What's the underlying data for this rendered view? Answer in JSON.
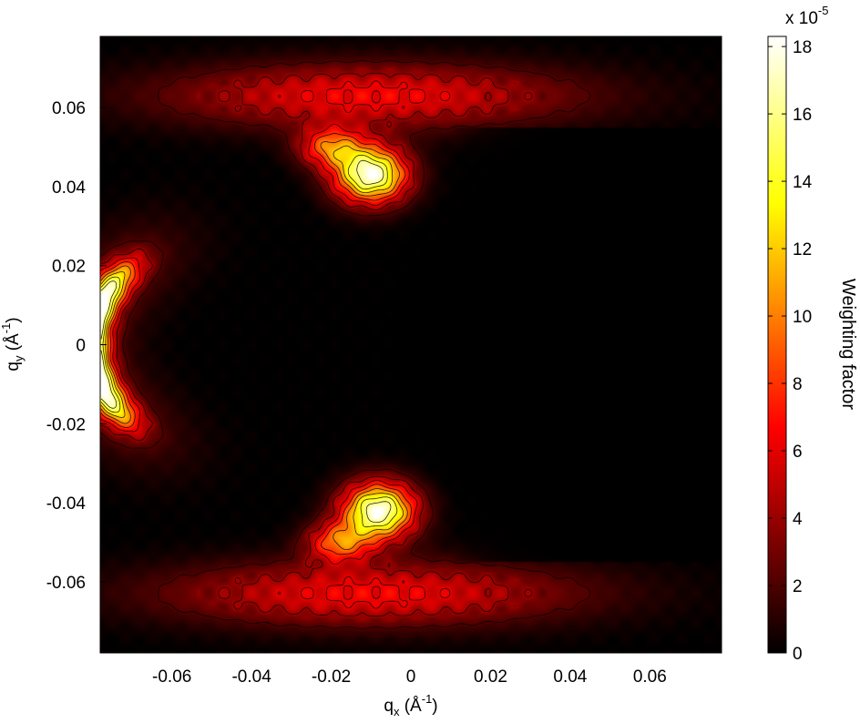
{
  "chart_data": {
    "type": "heatmap",
    "title": "",
    "xlabel": {
      "main": "q",
      "sub": "x",
      "unit_open": " (Å",
      "unit_sup": "-1",
      "unit_close": ")"
    },
    "ylabel": {
      "main": "q",
      "sub": "y",
      "unit_open": " (Å",
      "unit_sup": "-1",
      "unit_close": ")"
    },
    "xlim": [
      -0.078,
      0.078
    ],
    "ylim": [
      -0.078,
      0.078
    ],
    "xticks": [
      -0.06,
      -0.04,
      -0.02,
      0,
      0.02,
      0.04,
      0.06
    ],
    "xtick_labels": [
      "-0.06",
      "-0.04",
      "-0.02",
      "0",
      "0.02",
      "0.04",
      "0.06"
    ],
    "yticks": [
      0.06,
      0.04,
      0.02,
      0,
      -0.02,
      -0.04,
      -0.06
    ],
    "ytick_labels": [
      "0.06",
      "0.04",
      "0.02",
      "0",
      "-0.02",
      "-0.04",
      "-0.06"
    ],
    "colormap": "hot",
    "colorbar": {
      "label": "Weighting factor",
      "range": [
        0,
        18.3
      ],
      "ticks": [
        0,
        2,
        4,
        6,
        8,
        10,
        12,
        14,
        16,
        18
      ],
      "tick_labels": [
        "0",
        "2",
        "4",
        "6",
        "8",
        "10",
        "12",
        "14",
        "16",
        "18"
      ],
      "multiplier_base": "x 10",
      "multiplier_exp": "-5"
    },
    "features": [
      {
        "name": "left crescent",
        "center_q": [
          -0.056,
          0.0
        ],
        "radius_q": 0.024,
        "angular_span_deg": [
          125,
          235
        ],
        "peak": 18
      },
      {
        "name": "upper lobe",
        "center_q": [
          -0.01,
          0.044
        ],
        "peak": 18
      },
      {
        "name": "lower lobe",
        "center_q": [
          -0.01,
          -0.044
        ],
        "peak": 18
      },
      {
        "name": "upper diffuse band",
        "center_q": [
          -0.01,
          0.062
        ],
        "peak": 7
      },
      {
        "name": "lower diffuse band",
        "center_q": [
          -0.01,
          -0.062
        ],
        "peak": 7
      },
      {
        "name": "dark beam-stop region",
        "center_q": [
          0.03,
          0.0
        ],
        "value": 0
      }
    ],
    "contour_levels": [
      2,
      4,
      6,
      8,
      10,
      12,
      14,
      16
    ],
    "grid": false
  }
}
